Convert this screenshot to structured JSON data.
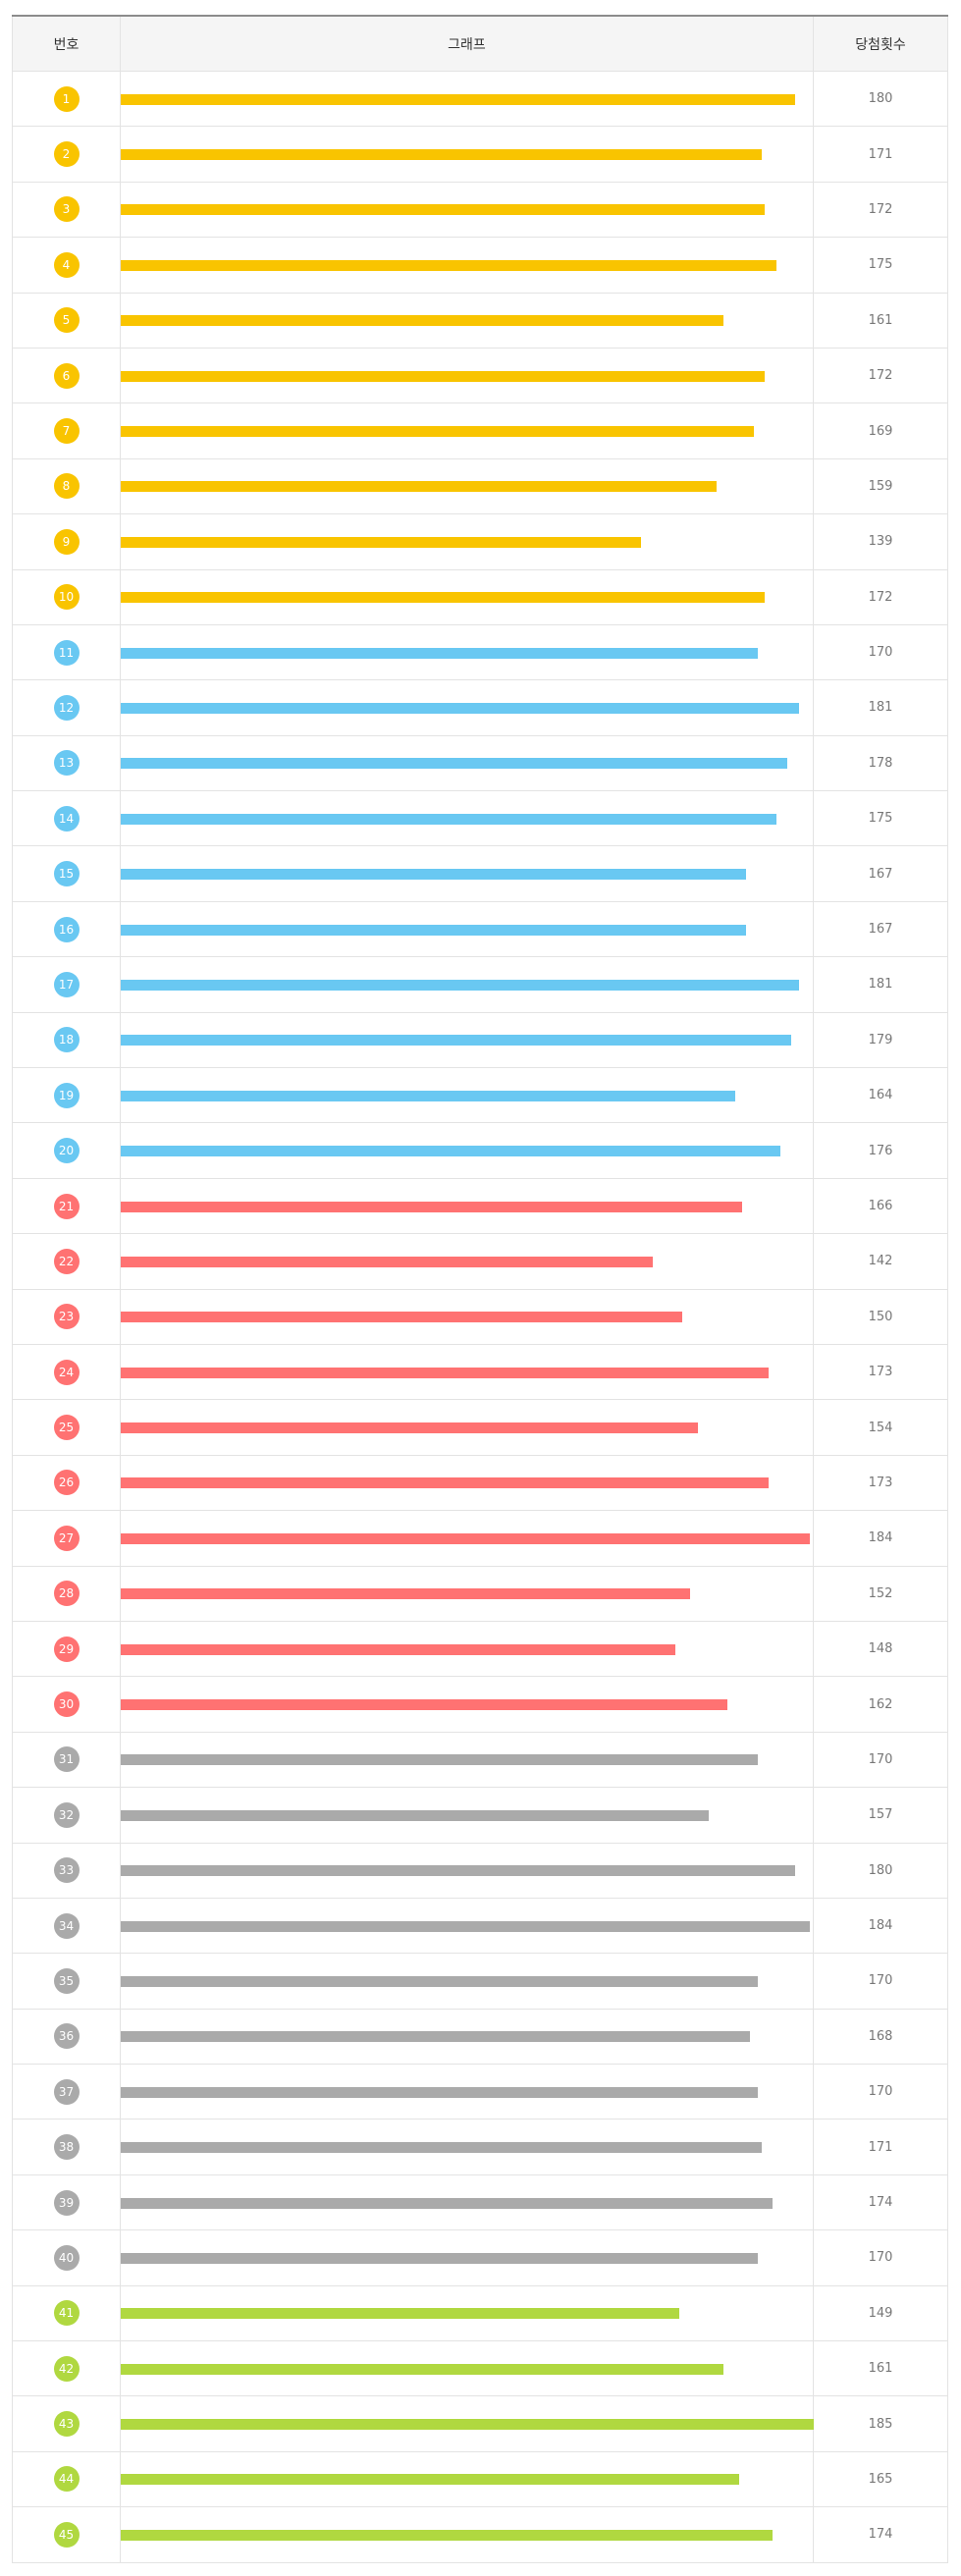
{
  "table": {
    "headers": {
      "number": "번호",
      "graph": "그래프",
      "count": "당첨횟수"
    }
  },
  "colors": {
    "range_1_10": "#f9c400",
    "range_11_20": "#69c8f2",
    "range_21_30": "#ff7272",
    "range_31_40": "#aaaaaa",
    "range_41_45": "#b0d840"
  },
  "chart_data": {
    "type": "bar",
    "orientation": "horizontal",
    "categories": [
      "1",
      "2",
      "3",
      "4",
      "5",
      "6",
      "7",
      "8",
      "9",
      "10",
      "11",
      "12",
      "13",
      "14",
      "15",
      "16",
      "17",
      "18",
      "19",
      "20",
      "21",
      "22",
      "23",
      "24",
      "25",
      "26",
      "27",
      "28",
      "29",
      "30",
      "31",
      "32",
      "33",
      "34",
      "35",
      "36",
      "37",
      "38",
      "39",
      "40",
      "41",
      "42",
      "43",
      "44",
      "45"
    ],
    "values": [
      180,
      171,
      172,
      175,
      161,
      172,
      169,
      159,
      139,
      172,
      170,
      181,
      178,
      175,
      167,
      167,
      181,
      179,
      164,
      176,
      166,
      142,
      150,
      173,
      154,
      173,
      184,
      152,
      148,
      162,
      170,
      157,
      180,
      184,
      170,
      168,
      170,
      171,
      174,
      170,
      149,
      161,
      185,
      165,
      174
    ],
    "xlim": [
      0,
      185
    ]
  }
}
